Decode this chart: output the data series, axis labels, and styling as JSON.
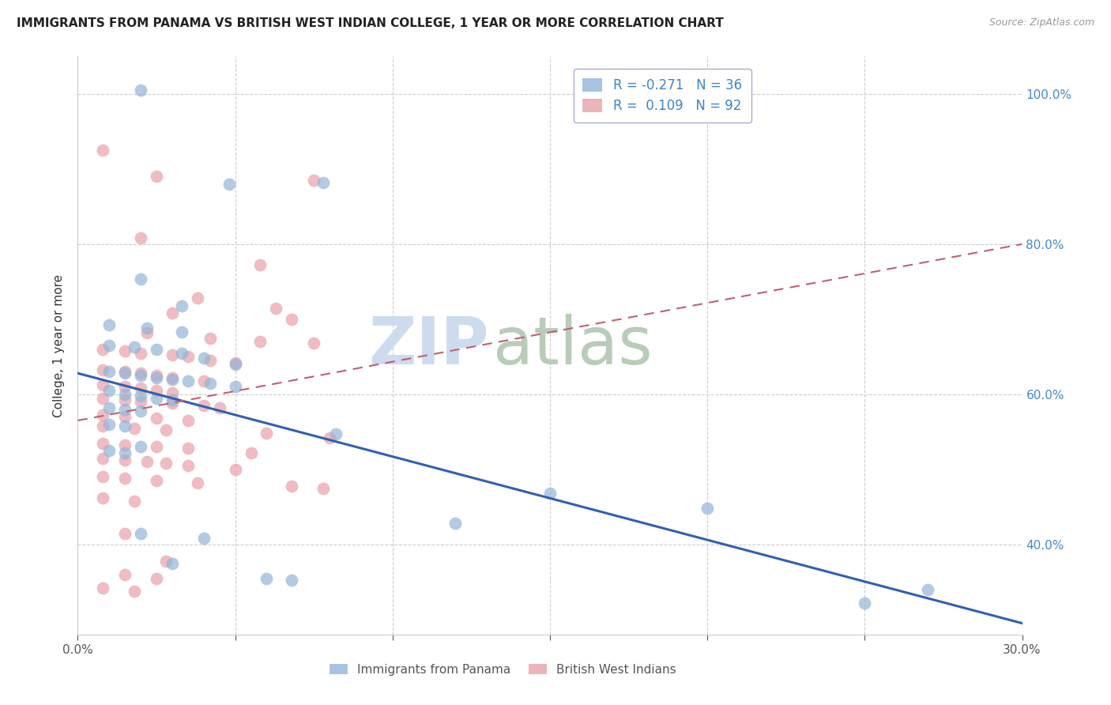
{
  "title": "IMMIGRANTS FROM PANAMA VS BRITISH WEST INDIAN COLLEGE, 1 YEAR OR MORE CORRELATION CHART",
  "source": "Source: ZipAtlas.com",
  "ylabel_text": "College, 1 year or more",
  "xlim": [
    0.0,
    0.3
  ],
  "ylim": [
    0.28,
    1.05
  ],
  "ytick_vals": [
    0.4,
    0.6,
    0.8,
    1.0
  ],
  "ytick_labels": [
    "40.0%",
    "60.0%",
    "80.0%",
    "100.0%"
  ],
  "xtick_vals": [
    0.0,
    0.05,
    0.1,
    0.15,
    0.2,
    0.25,
    0.3
  ],
  "xtick_labels": [
    "0.0%",
    "",
    "",
    "",
    "",
    "",
    "30.0%"
  ],
  "panama_color": "#92b4d7",
  "bwi_color": "#e8a0a8",
  "panama_line_color": "#3060b0",
  "bwi_line_color": "#c06070",
  "watermark_zip_color": "#ccdcee",
  "watermark_atlas_color": "#b8ccb8",
  "background_color": "#ffffff",
  "grid_color": "#cccccc",
  "right_label_color": "#4488cc",
  "title_color": "#222222",
  "source_color": "#999999",
  "bottom_label_color": "#555555",
  "legend_text_color": "#3d85c8",
  "panama_line_x": [
    0.0,
    0.3
  ],
  "panama_line_y": [
    0.628,
    0.295
  ],
  "bwi_line_x": [
    0.0,
    0.3
  ],
  "bwi_line_y": [
    0.565,
    0.8
  ],
  "panama_scatter": [
    [
      0.02,
      1.005
    ],
    [
      0.048,
      0.88
    ],
    [
      0.078,
      0.882
    ],
    [
      0.02,
      0.753
    ],
    [
      0.033,
      0.718
    ],
    [
      0.01,
      0.692
    ],
    [
      0.022,
      0.688
    ],
    [
      0.033,
      0.683
    ],
    [
      0.01,
      0.665
    ],
    [
      0.018,
      0.663
    ],
    [
      0.025,
      0.66
    ],
    [
      0.033,
      0.655
    ],
    [
      0.04,
      0.648
    ],
    [
      0.05,
      0.64
    ],
    [
      0.01,
      0.63
    ],
    [
      0.015,
      0.628
    ],
    [
      0.02,
      0.625
    ],
    [
      0.025,
      0.622
    ],
    [
      0.03,
      0.62
    ],
    [
      0.035,
      0.618
    ],
    [
      0.042,
      0.615
    ],
    [
      0.05,
      0.61
    ],
    [
      0.01,
      0.605
    ],
    [
      0.015,
      0.6
    ],
    [
      0.02,
      0.598
    ],
    [
      0.025,
      0.595
    ],
    [
      0.03,
      0.592
    ],
    [
      0.01,
      0.582
    ],
    [
      0.015,
      0.58
    ],
    [
      0.02,
      0.578
    ],
    [
      0.01,
      0.56
    ],
    [
      0.015,
      0.558
    ],
    [
      0.082,
      0.547
    ],
    [
      0.02,
      0.53
    ],
    [
      0.01,
      0.525
    ],
    [
      0.015,
      0.522
    ],
    [
      0.15,
      0.468
    ],
    [
      0.2,
      0.448
    ],
    [
      0.12,
      0.428
    ],
    [
      0.02,
      0.415
    ],
    [
      0.04,
      0.408
    ],
    [
      0.03,
      0.375
    ],
    [
      0.06,
      0.355
    ],
    [
      0.068,
      0.352
    ],
    [
      0.27,
      0.34
    ],
    [
      0.25,
      0.322
    ]
  ],
  "bwi_scatter": [
    [
      0.008,
      0.925
    ],
    [
      0.025,
      0.89
    ],
    [
      0.075,
      0.885
    ],
    [
      0.02,
      0.808
    ],
    [
      0.058,
      0.772
    ],
    [
      0.038,
      0.728
    ],
    [
      0.063,
      0.715
    ],
    [
      0.03,
      0.708
    ],
    [
      0.068,
      0.7
    ],
    [
      0.022,
      0.682
    ],
    [
      0.042,
      0.675
    ],
    [
      0.058,
      0.67
    ],
    [
      0.075,
      0.668
    ],
    [
      0.008,
      0.66
    ],
    [
      0.015,
      0.658
    ],
    [
      0.02,
      0.655
    ],
    [
      0.03,
      0.652
    ],
    [
      0.035,
      0.65
    ],
    [
      0.042,
      0.645
    ],
    [
      0.05,
      0.642
    ],
    [
      0.008,
      0.632
    ],
    [
      0.015,
      0.63
    ],
    [
      0.02,
      0.628
    ],
    [
      0.025,
      0.625
    ],
    [
      0.03,
      0.622
    ],
    [
      0.04,
      0.618
    ],
    [
      0.008,
      0.612
    ],
    [
      0.015,
      0.61
    ],
    [
      0.02,
      0.608
    ],
    [
      0.025,
      0.605
    ],
    [
      0.03,
      0.602
    ],
    [
      0.008,
      0.595
    ],
    [
      0.015,
      0.592
    ],
    [
      0.02,
      0.59
    ],
    [
      0.03,
      0.588
    ],
    [
      0.04,
      0.585
    ],
    [
      0.045,
      0.582
    ],
    [
      0.008,
      0.572
    ],
    [
      0.015,
      0.57
    ],
    [
      0.025,
      0.568
    ],
    [
      0.035,
      0.565
    ],
    [
      0.008,
      0.558
    ],
    [
      0.018,
      0.555
    ],
    [
      0.028,
      0.552
    ],
    [
      0.06,
      0.548
    ],
    [
      0.08,
      0.542
    ],
    [
      0.008,
      0.535
    ],
    [
      0.015,
      0.532
    ],
    [
      0.025,
      0.53
    ],
    [
      0.035,
      0.528
    ],
    [
      0.055,
      0.522
    ],
    [
      0.008,
      0.515
    ],
    [
      0.015,
      0.512
    ],
    [
      0.022,
      0.51
    ],
    [
      0.028,
      0.508
    ],
    [
      0.035,
      0.505
    ],
    [
      0.05,
      0.5
    ],
    [
      0.008,
      0.49
    ],
    [
      0.015,
      0.488
    ],
    [
      0.025,
      0.485
    ],
    [
      0.038,
      0.482
    ],
    [
      0.068,
      0.478
    ],
    [
      0.078,
      0.475
    ],
    [
      0.008,
      0.462
    ],
    [
      0.018,
      0.458
    ],
    [
      0.015,
      0.415
    ],
    [
      0.028,
      0.378
    ],
    [
      0.015,
      0.36
    ],
    [
      0.025,
      0.355
    ],
    [
      0.008,
      0.342
    ],
    [
      0.018,
      0.338
    ]
  ]
}
